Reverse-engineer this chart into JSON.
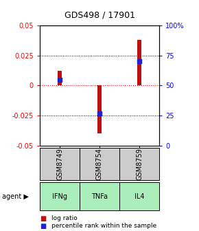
{
  "title": "GDS498 / 17901",
  "samples": [
    "GSM8749",
    "GSM8754",
    "GSM8759"
  ],
  "agents": [
    "IFNg",
    "TNFa",
    "IL4"
  ],
  "log_ratios": [
    0.012,
    -0.04,
    0.038
  ],
  "percentile_ranks": [
    0.55,
    0.27,
    0.7
  ],
  "ylim_left": [
    -0.05,
    0.05
  ],
  "ylim_right": [
    0.0,
    1.0
  ],
  "yticks_left": [
    -0.05,
    -0.025,
    0.0,
    0.025,
    0.05
  ],
  "yticks_right": [
    0.0,
    0.25,
    0.5,
    0.75,
    1.0
  ],
  "ytick_labels_left": [
    "-0.05",
    "-0.025",
    "0",
    "0.025",
    "0.05"
  ],
  "ytick_labels_right": [
    "0",
    "25",
    "50",
    "75",
    "100%"
  ],
  "bar_color": "#bb1111",
  "dot_color": "#2222cc",
  "agent_bg_color": "#aaeebb",
  "sample_bg_color": "#cccccc",
  "legend_text1": "log ratio",
  "legend_text2": "percentile rank within the sample",
  "bar_width": 0.12,
  "dot_size": 18,
  "title_fontsize": 9,
  "tick_fontsize": 7,
  "table_fontsize": 7,
  "legend_fontsize": 6.5
}
